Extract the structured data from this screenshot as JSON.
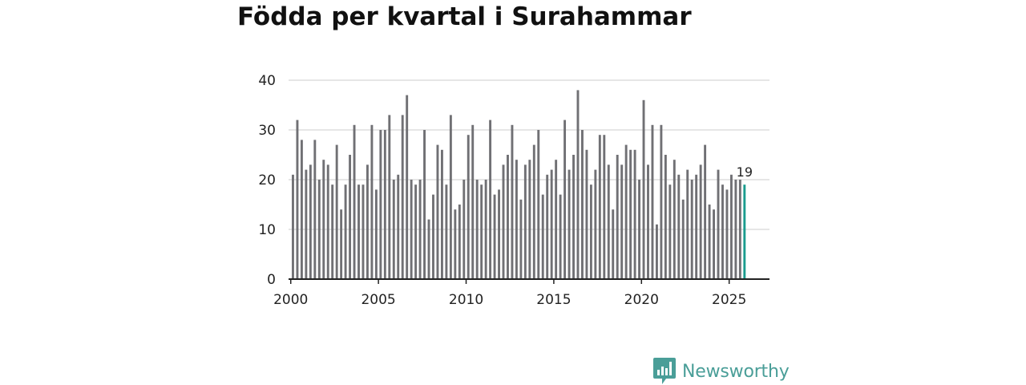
{
  "title": "Födda per kvartal i Surahammar",
  "brand": {
    "name": "Newsworthy",
    "color": "#4a9e98",
    "icon": "bar-chart-speech-bubble-logo"
  },
  "colors": {
    "bar": "#707074",
    "highlight": "#1a9c8e",
    "grid": "#dddddd",
    "axis": "#222222"
  },
  "chart_data": {
    "type": "bar",
    "title": "Födda per kvartal i Surahammar",
    "xlabel": "",
    "ylabel": "",
    "ylim": [
      0,
      40
    ],
    "yticks": [
      0,
      10,
      20,
      30,
      40
    ],
    "xticks": [
      2000,
      2005,
      2010,
      2015,
      2020,
      2025
    ],
    "xlim": [
      1999.875,
      2027.3
    ],
    "grid": "horizontal",
    "first_period": "2000 Q1",
    "last_period": "2025 Q4",
    "categories": [
      "2000 Q1",
      "2000 Q2",
      "2000 Q3",
      "2000 Q4",
      "2001 Q1",
      "2001 Q2",
      "2001 Q3",
      "2001 Q4",
      "2002 Q1",
      "2002 Q2",
      "2002 Q3",
      "2002 Q4",
      "2003 Q1",
      "2003 Q2",
      "2003 Q3",
      "2003 Q4",
      "2004 Q1",
      "2004 Q2",
      "2004 Q3",
      "2004 Q4",
      "2005 Q1",
      "2005 Q2",
      "2005 Q3",
      "2005 Q4",
      "2006 Q1",
      "2006 Q2",
      "2006 Q3",
      "2006 Q4",
      "2007 Q1",
      "2007 Q2",
      "2007 Q3",
      "2007 Q4",
      "2008 Q1",
      "2008 Q2",
      "2008 Q3",
      "2008 Q4",
      "2009 Q1",
      "2009 Q2",
      "2009 Q3",
      "2009 Q4",
      "2010 Q1",
      "2010 Q2",
      "2010 Q3",
      "2010 Q4",
      "2011 Q1",
      "2011 Q2",
      "2011 Q3",
      "2011 Q4",
      "2012 Q1",
      "2012 Q2",
      "2012 Q3",
      "2012 Q4",
      "2013 Q1",
      "2013 Q2",
      "2013 Q3",
      "2013 Q4",
      "2014 Q1",
      "2014 Q2",
      "2014 Q3",
      "2014 Q4",
      "2015 Q1",
      "2015 Q2",
      "2015 Q3",
      "2015 Q4",
      "2016 Q1",
      "2016 Q2",
      "2016 Q3",
      "2016 Q4",
      "2017 Q1",
      "2017 Q2",
      "2017 Q3",
      "2017 Q4",
      "2018 Q1",
      "2018 Q2",
      "2018 Q3",
      "2018 Q4",
      "2019 Q1",
      "2019 Q2",
      "2019 Q3",
      "2019 Q4",
      "2020 Q1",
      "2020 Q2",
      "2020 Q3",
      "2020 Q4",
      "2021 Q1",
      "2021 Q2",
      "2021 Q3",
      "2021 Q4",
      "2022 Q1",
      "2022 Q2",
      "2022 Q3",
      "2022 Q4",
      "2023 Q1",
      "2023 Q2",
      "2023 Q3",
      "2023 Q4",
      "2024 Q1",
      "2024 Q2",
      "2024 Q3",
      "2024 Q4",
      "2025 Q1",
      "2025 Q2",
      "2025 Q3",
      "2025 Q4"
    ],
    "values": [
      21,
      32,
      28,
      22,
      23,
      28,
      20,
      24,
      23,
      19,
      27,
      14,
      19,
      25,
      31,
      19,
      19,
      23,
      31,
      18,
      30,
      30,
      33,
      20,
      21,
      33,
      37,
      20,
      19,
      20,
      30,
      12,
      17,
      27,
      26,
      19,
      33,
      14,
      15,
      20,
      29,
      31,
      20,
      19,
      20,
      32,
      17,
      18,
      23,
      25,
      31,
      24,
      16,
      23,
      24,
      27,
      30,
      17,
      21,
      22,
      24,
      17,
      32,
      22,
      25,
      38,
      30,
      26,
      19,
      22,
      29,
      29,
      23,
      14,
      25,
      23,
      27,
      26,
      26,
      20,
      36,
      23,
      31,
      11,
      31,
      25,
      19,
      24,
      21,
      16,
      22,
      20,
      21,
      23,
      27,
      15,
      14,
      22,
      19,
      18,
      21,
      20,
      20,
      19
    ],
    "highlight_index": 103,
    "highlight_label": "19"
  }
}
